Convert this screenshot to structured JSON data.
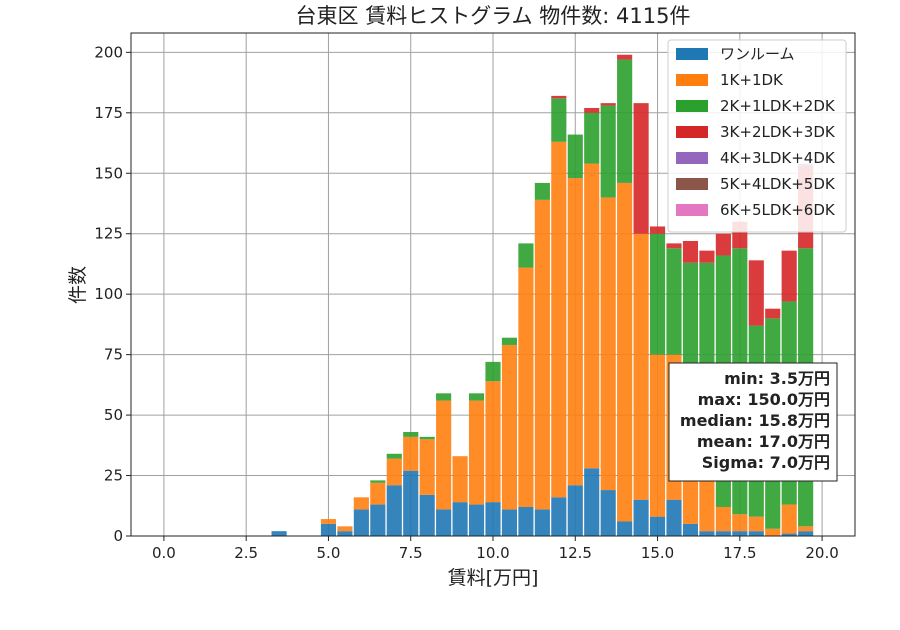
{
  "chart_data": {
    "type": "bar",
    "stacked": true,
    "title": "台東区 賃料ヒストグラム 物件数: 4115件",
    "xlabel": "賃料[万円]",
    "ylabel": "件数",
    "xlim": [
      -1.0,
      21.0
    ],
    "ylim": [
      0,
      208
    ],
    "xticks": [
      0.0,
      2.5,
      5.0,
      7.5,
      10.0,
      12.5,
      15.0,
      17.5,
      20.0
    ],
    "yticks": [
      0,
      25,
      50,
      75,
      100,
      125,
      150,
      175,
      200
    ],
    "grid": true,
    "legend_position": "top-right",
    "bin_width": 0.5,
    "x": [
      3.5,
      5.0,
      5.5,
      6.0,
      6.5,
      7.0,
      7.5,
      8.0,
      8.5,
      9.0,
      9.5,
      10.0,
      10.5,
      11.0,
      11.5,
      12.0,
      12.5,
      13.0,
      13.5,
      14.0,
      14.5,
      15.0,
      15.5,
      16.0,
      16.5,
      17.0,
      17.5,
      18.0,
      18.5,
      19.0,
      19.5
    ],
    "series": [
      {
        "name": "ワンルーム",
        "color": "#1f77b4",
        "values": [
          2,
          5,
          2,
          11,
          13,
          21,
          27,
          17,
          11,
          14,
          13,
          14,
          11,
          12,
          11,
          16,
          21,
          28,
          19,
          6,
          15,
          8,
          15,
          5,
          2,
          2,
          2,
          2,
          0,
          1,
          2
        ]
      },
      {
        "name": "1K+1DK",
        "color": "#ff7f0e",
        "values": [
          0,
          2,
          2,
          5,
          9,
          11,
          14,
          23,
          45,
          19,
          43,
          50,
          68,
          99,
          128,
          147,
          127,
          126,
          121,
          140,
          110,
          67,
          60,
          55,
          25,
          10,
          7,
          6,
          3,
          12,
          2
        ]
      },
      {
        "name": "2K+1LDK+2DK",
        "color": "#2ca02c",
        "values": [
          0,
          0,
          0,
          0,
          1,
          2,
          2,
          1,
          3,
          0,
          3,
          8,
          3,
          10,
          7,
          18,
          18,
          21,
          38,
          51,
          0,
          50,
          44,
          53,
          86,
          104,
          110,
          79,
          87,
          84,
          115
        ]
      },
      {
        "name": "3K+2LDK+3DK",
        "color": "#d62728",
        "values": [
          0,
          0,
          0,
          0,
          0,
          0,
          0,
          0,
          0,
          0,
          0,
          0,
          0,
          0,
          0,
          1,
          0,
          2,
          1,
          2,
          54,
          3,
          2,
          9,
          5,
          9,
          11,
          27,
          4,
          21,
          34
        ]
      },
      {
        "name": "4K+3LDK+4DK",
        "color": "#9467bd",
        "values": [
          0,
          0,
          0,
          0,
          0,
          0,
          0,
          0,
          0,
          0,
          0,
          0,
          0,
          0,
          0,
          0,
          0,
          0,
          0,
          0,
          0,
          0,
          0,
          0,
          0,
          0,
          0,
          0,
          0,
          0,
          1
        ]
      },
      {
        "name": "5K+4LDK+5DK",
        "color": "#8c564b",
        "values": [
          0,
          0,
          0,
          0,
          0,
          0,
          0,
          0,
          0,
          0,
          0,
          0,
          0,
          0,
          0,
          0,
          0,
          0,
          0,
          0,
          0,
          0,
          0,
          0,
          0,
          0,
          0,
          0,
          0,
          0,
          0
        ]
      },
      {
        "name": "6K+5LDK+6DK",
        "color": "#e377c2",
        "values": [
          0,
          0,
          0,
          0,
          0,
          0,
          0,
          0,
          0,
          0,
          0,
          0,
          0,
          0,
          0,
          0,
          0,
          0,
          0,
          0,
          0,
          0,
          0,
          0,
          0,
          0,
          0,
          0,
          0,
          0,
          0
        ]
      }
    ],
    "stats": [
      "min: 3.5万円",
      "max: 150.0万円",
      "median: 15.8万円",
      "mean: 17.0万円",
      "Sigma: 7.0万円"
    ]
  }
}
